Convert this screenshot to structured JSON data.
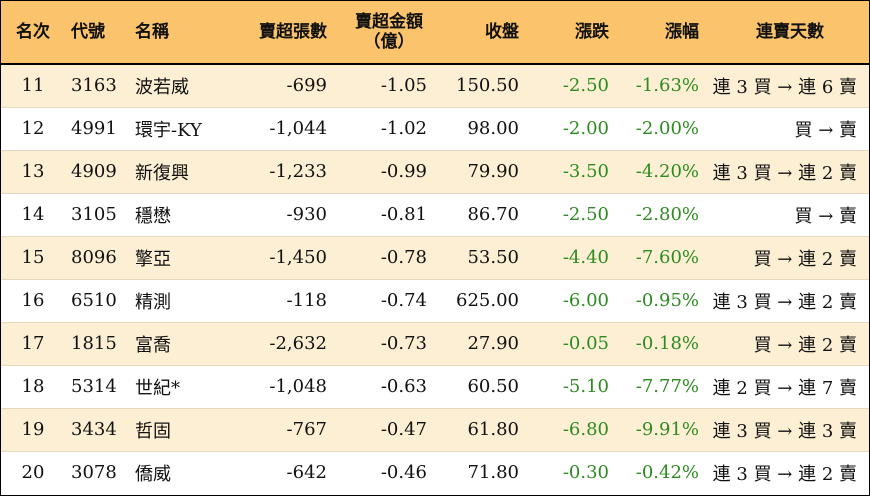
{
  "colors": {
    "header_bg": "#fbc46c",
    "alt_row_bg": "#fdefd3",
    "positive_green": "#2e8b22"
  },
  "header": {
    "rank": "名次",
    "code": "代號",
    "name": "名稱",
    "net_sell_lots": "賣超張數",
    "net_sell_amount": "賣超金額",
    "net_sell_amount_unit": "（億）",
    "close": "收盤",
    "change": "漲跌",
    "change_pct": "漲幅",
    "streak": "連賣天數"
  },
  "rows": [
    {
      "rank": "11",
      "code": "3163",
      "name": "波若威",
      "lots": "-699",
      "amount": "-1.05",
      "close": "150.50",
      "change": "-2.50",
      "pct": "-1.63%",
      "streak": "連 3 買 → 連 6 賣"
    },
    {
      "rank": "12",
      "code": "4991",
      "name": "環宇-KY",
      "lots": "-1,044",
      "amount": "-1.02",
      "close": "98.00",
      "change": "-2.00",
      "pct": "-2.00%",
      "streak": "買 → 賣"
    },
    {
      "rank": "13",
      "code": "4909",
      "name": "新復興",
      "lots": "-1,233",
      "amount": "-0.99",
      "close": "79.90",
      "change": "-3.50",
      "pct": "-4.20%",
      "streak": "連 3 買 → 連 2 賣"
    },
    {
      "rank": "14",
      "code": "3105",
      "name": "穩懋",
      "lots": "-930",
      "amount": "-0.81",
      "close": "86.70",
      "change": "-2.50",
      "pct": "-2.80%",
      "streak": "買 → 賣"
    },
    {
      "rank": "15",
      "code": "8096",
      "name": "擎亞",
      "lots": "-1,450",
      "amount": "-0.78",
      "close": "53.50",
      "change": "-4.40",
      "pct": "-7.60%",
      "streak": "買 → 連 2 賣"
    },
    {
      "rank": "16",
      "code": "6510",
      "name": "精測",
      "lots": "-118",
      "amount": "-0.74",
      "close": "625.00",
      "change": "-6.00",
      "pct": "-0.95%",
      "streak": "連 3 買 → 連 2 賣"
    },
    {
      "rank": "17",
      "code": "1815",
      "name": "富喬",
      "lots": "-2,632",
      "amount": "-0.73",
      "close": "27.90",
      "change": "-0.05",
      "pct": "-0.18%",
      "streak": "買 → 連 2 賣"
    },
    {
      "rank": "18",
      "code": "5314",
      "name": "世紀*",
      "lots": "-1,048",
      "amount": "-0.63",
      "close": "60.50",
      "change": "-5.10",
      "pct": "-7.77%",
      "streak": "連 2 買 → 連 7 賣"
    },
    {
      "rank": "19",
      "code": "3434",
      "name": "哲固",
      "lots": "-767",
      "amount": "-0.47",
      "close": "61.80",
      "change": "-6.80",
      "pct": "-9.91%",
      "streak": "連 3 買 → 連 3 賣"
    },
    {
      "rank": "20",
      "code": "3078",
      "name": "僑威",
      "lots": "-642",
      "amount": "-0.46",
      "close": "71.80",
      "change": "-0.30",
      "pct": "-0.42%",
      "streak": "連 3 買 → 連 2 賣"
    }
  ]
}
